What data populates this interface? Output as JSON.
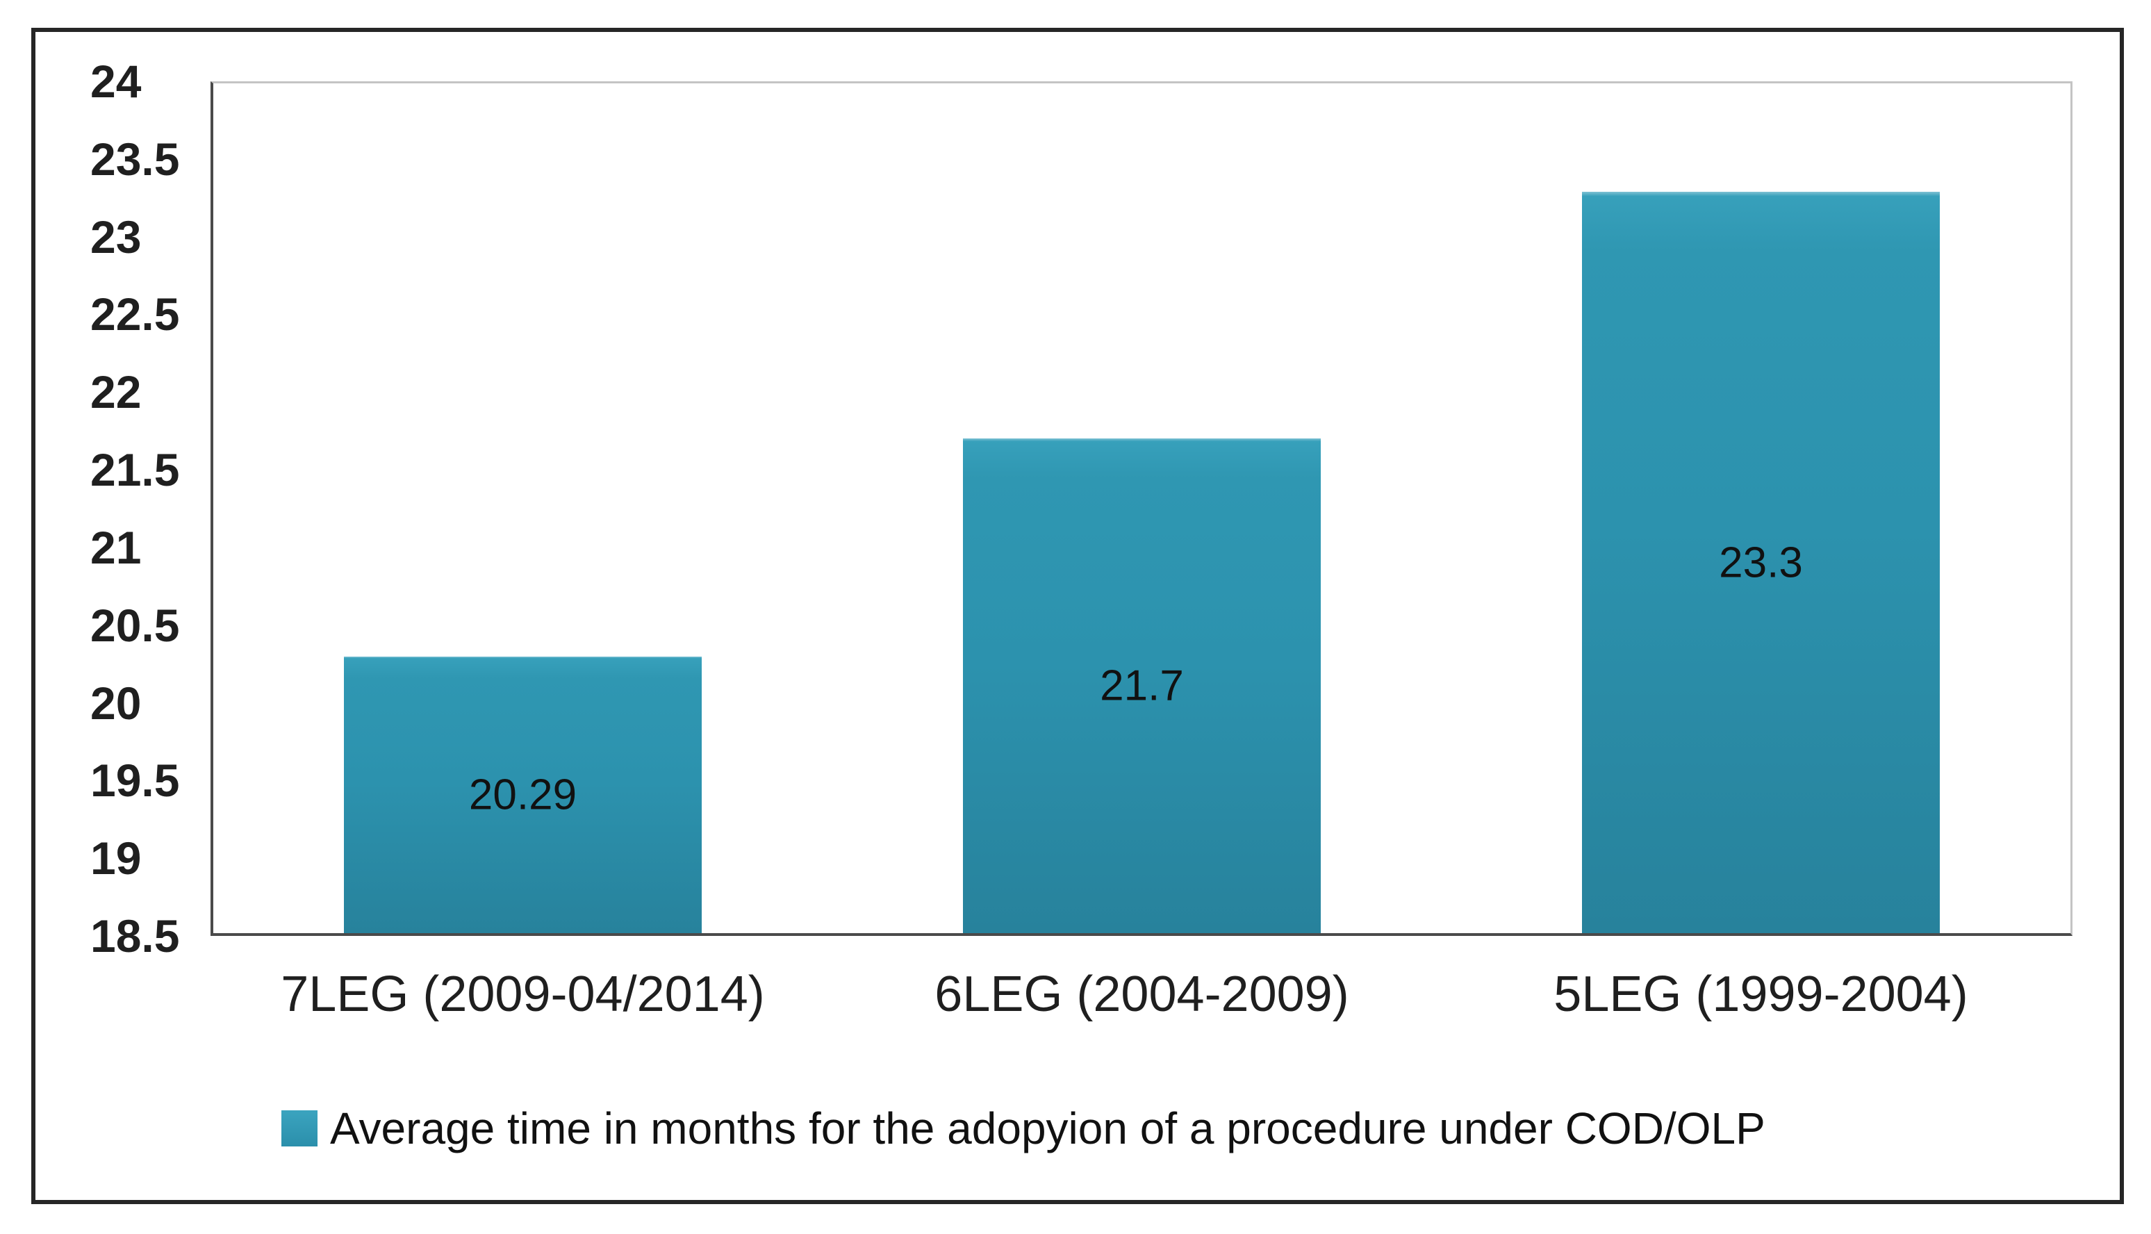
{
  "figure": {
    "background": "#ffffff",
    "outer_border_color": "#262626"
  },
  "chart_data": {
    "type": "bar",
    "title": "",
    "categories": [
      "7LEG (2009-04/2014)",
      "6LEG (2004-2009)",
      "5LEG (1999-2004)"
    ],
    "values": [
      20.29,
      21.7,
      23.3
    ],
    "data_labels": [
      "20.29",
      "21.7",
      "23.3"
    ],
    "series": [
      {
        "name": "Average time in months for the adopyion of a procedure under COD/OLP",
        "values": [
          20.29,
          21.7,
          23.3
        ]
      }
    ],
    "xlabel": "",
    "ylabel": "",
    "ylim": [
      18.5,
      24
    ],
    "ytick_step": 0.5,
    "yticks": [
      "24",
      "23.5",
      "23",
      "22.5",
      "22",
      "21.5",
      "21",
      "20.5",
      "20",
      "19.5",
      "19",
      "18.5"
    ],
    "grid": false,
    "legend": {
      "position": "bottom",
      "label": "Average time in months for the adopyion of a procedure under COD/OLP",
      "marker_color": "#2E93AE"
    },
    "colors": {
      "bar_fill": "#2C92AE",
      "bar_fill_top": "#37A0BB",
      "bar_fill_bottom": "#27829C",
      "axis_line": "#4a4a4a",
      "plot_border": "#c4c4c4",
      "text": "#1f1f1f"
    }
  }
}
